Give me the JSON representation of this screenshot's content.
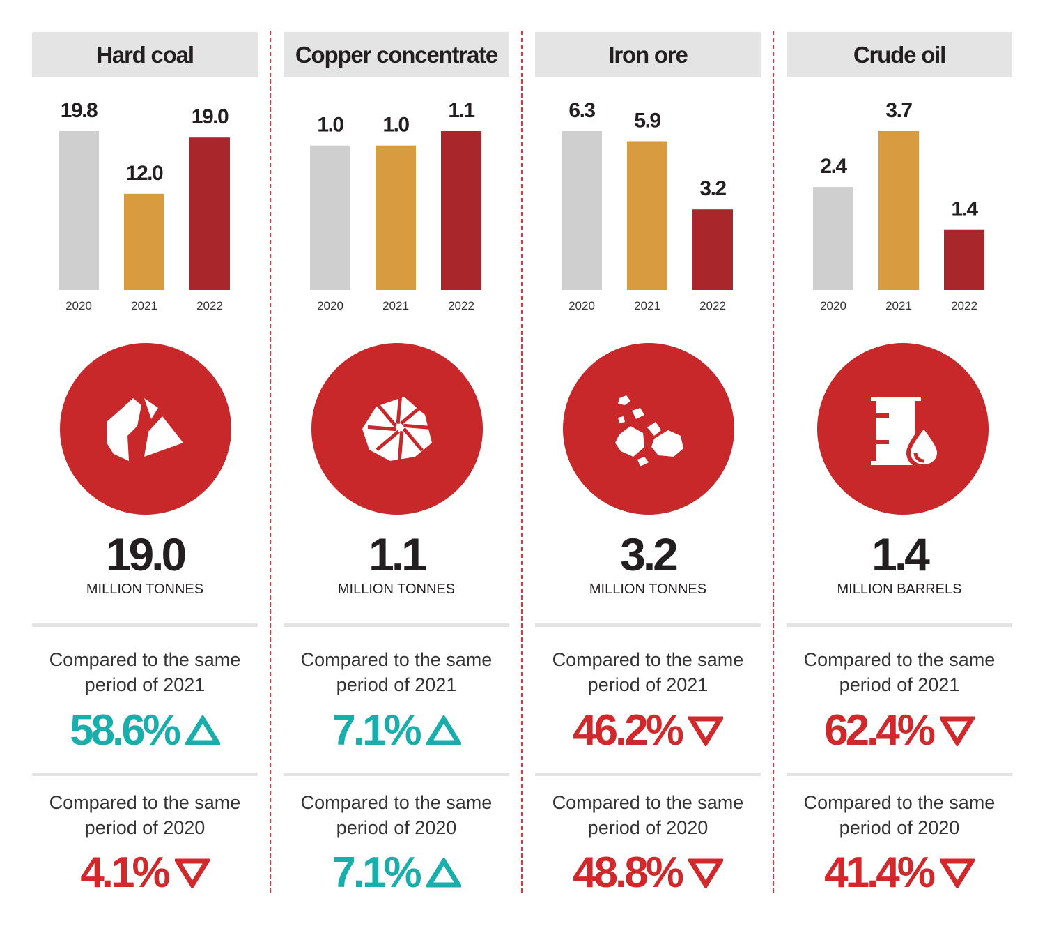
{
  "colors": {
    "y2020": "#cfcfcf",
    "y2021": "#d89b3f",
    "y2022": "#a9272a",
    "circle": "#c8282a",
    "up": "#17aeab",
    "down": "#d0282b"
  },
  "chart_data": [
    {
      "type": "bar",
      "title": "Hard coal",
      "categories": [
        "2020",
        "2021",
        "2022"
      ],
      "values": [
        19.8,
        12.0,
        19.0
      ],
      "value_labels": [
        "19.8",
        "12.0",
        "19.0"
      ],
      "icon": "coal-icon",
      "big_value": "19.0",
      "unit": "MILLION TONNES",
      "comparisons": [
        {
          "label": "Compared to the same period of 2021",
          "change": "58.6%",
          "direction": "up"
        },
        {
          "label": "Compared to the same period of 2020",
          "change": "4.1%",
          "direction": "down"
        }
      ]
    },
    {
      "type": "bar",
      "title": "Copper concentrate",
      "categories": [
        "2020",
        "2021",
        "2022"
      ],
      "values": [
        1.0,
        1.0,
        1.1
      ],
      "value_labels": [
        "1.0",
        "1.0",
        "1.1"
      ],
      "icon": "copper-concentrate-icon",
      "big_value": "1.1",
      "unit": "MILLION TONNES",
      "comparisons": [
        {
          "label": "Compared to the same period of 2021",
          "change": "7.1%",
          "direction": "up"
        },
        {
          "label": "Compared to the same period of 2020",
          "change": "7.1%",
          "direction": "up"
        }
      ]
    },
    {
      "type": "bar",
      "title": "Iron ore",
      "categories": [
        "2020",
        "2021",
        "2022"
      ],
      "values": [
        6.3,
        5.9,
        3.2
      ],
      "value_labels": [
        "6.3",
        "5.9",
        "3.2"
      ],
      "icon": "iron-ore-icon",
      "big_value": "3.2",
      "unit": "MILLION TONNES",
      "comparisons": [
        {
          "label": "Compared to the same period of 2021",
          "change": "46.2%",
          "direction": "down"
        },
        {
          "label": "Compared to the same period of 2020",
          "change": "48.8%",
          "direction": "down"
        }
      ]
    },
    {
      "type": "bar",
      "title": "Crude oil",
      "categories": [
        "2020",
        "2021",
        "2022"
      ],
      "values": [
        2.4,
        3.7,
        1.4
      ],
      "value_labels": [
        "2.4",
        "3.7",
        "1.4"
      ],
      "icon": "oil-barrel-icon",
      "big_value": "1.4",
      "unit": "MILLION BARRELS",
      "comparisons": [
        {
          "label": "Compared to the same period of 2021",
          "change": "62.4%",
          "direction": "down"
        },
        {
          "label": "Compared to the same period of 2020",
          "change": "41.4%",
          "direction": "down"
        }
      ]
    }
  ]
}
